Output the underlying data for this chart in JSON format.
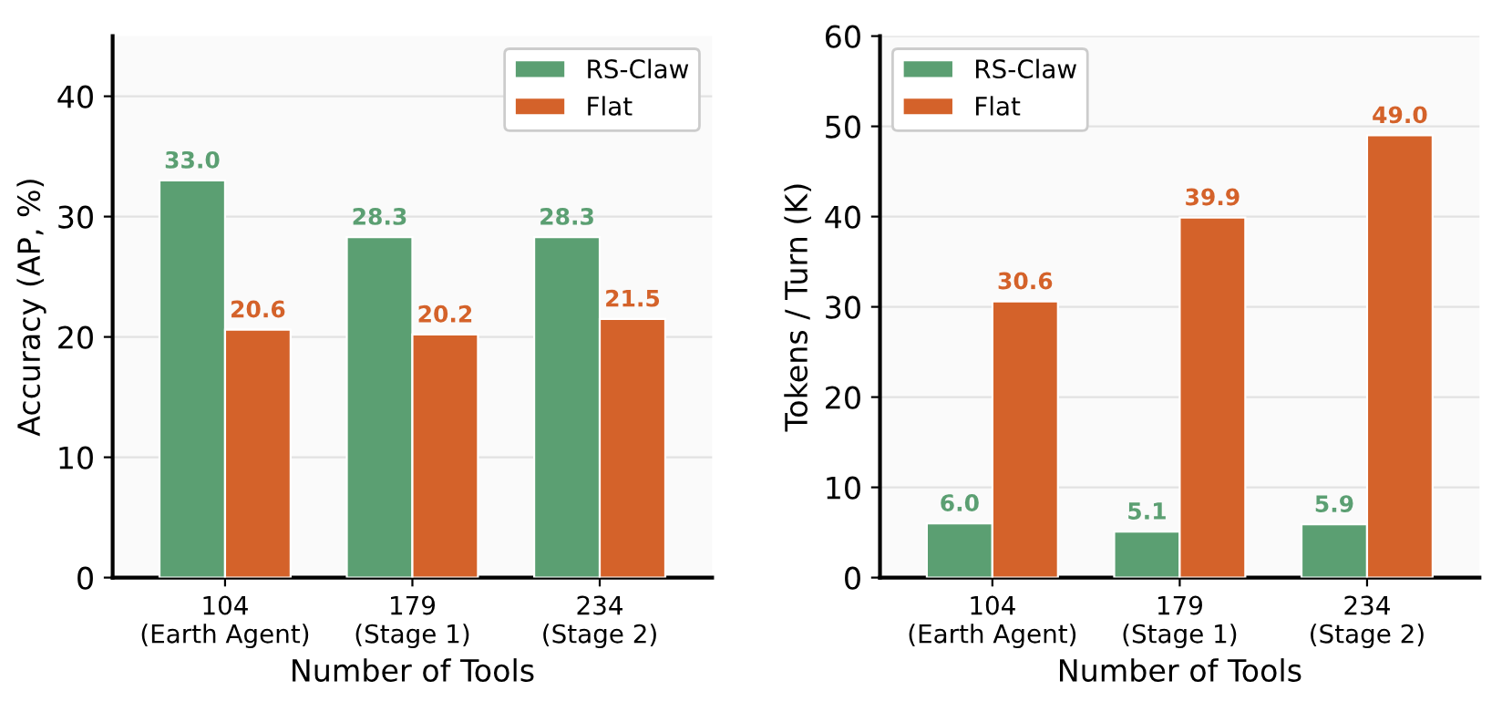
{
  "chart_data": [
    {
      "type": "bar",
      "xlabel": "Number of Tools",
      "ylabel": "Accuracy (AP, %)",
      "categories": [
        "104\n(Earth Agent)",
        "179\n(Stage 1)",
        "234\n(Stage 2)"
      ],
      "series": [
        {
          "name": "RS-Claw",
          "color": "#5b9f72",
          "values": [
            33.0,
            28.3,
            28.3
          ],
          "value_labels": [
            "33.0",
            "28.3",
            "28.3"
          ]
        },
        {
          "name": "Flat",
          "color": "#d4622a",
          "values": [
            20.6,
            20.2,
            21.5
          ],
          "value_labels": [
            "20.6",
            "20.2",
            "21.5"
          ]
        }
      ],
      "ylim": [
        0,
        45
      ],
      "yticks": [
        0,
        10,
        20,
        30,
        40
      ],
      "grid": "y",
      "legend": "top right"
    },
    {
      "type": "bar",
      "xlabel": "Number of Tools",
      "ylabel": "Tokens / Turn (K)",
      "categories": [
        "104\n(Earth Agent)",
        "179\n(Stage 1)",
        "234\n(Stage 2)"
      ],
      "series": [
        {
          "name": "RS-Claw",
          "color": "#5b9f72",
          "values": [
            6.0,
            5.1,
            5.9
          ],
          "value_labels": [
            "6.0",
            "5.1",
            "5.9"
          ]
        },
        {
          "name": "Flat",
          "color": "#d4622a",
          "values": [
            30.6,
            39.9,
            49.0
          ],
          "value_labels": [
            "30.6",
            "39.9",
            "49.0"
          ]
        }
      ],
      "ylim": [
        0,
        60
      ],
      "yticks": [
        0,
        10,
        20,
        30,
        40,
        50,
        60
      ],
      "grid": "y",
      "legend": "top left"
    }
  ]
}
